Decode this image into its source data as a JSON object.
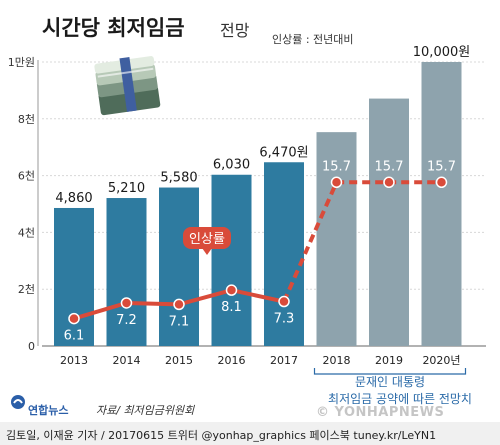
{
  "header": {
    "title_main": "시간당 최저임금",
    "title_sub": "전망",
    "rate_note": "인상률 : 전년대비"
  },
  "chart_data": {
    "type": "bar",
    "categories": [
      "2013",
      "2014",
      "2015",
      "2016",
      "2017",
      "2018",
      "2019",
      "2020년"
    ],
    "values": [
      4860,
      5210,
      5580,
      6030,
      6470,
      7530,
      8712,
      10000
    ],
    "value_labels": [
      "4,860",
      "5,210",
      "5,580",
      "6,030",
      "6,470원",
      "",
      "",
      "10,000원"
    ],
    "projected_from_index": 5,
    "ylim": [
      0,
      10000
    ],
    "yticks": [
      0,
      2000,
      4000,
      6000,
      8000,
      10000
    ],
    "ytick_labels": [
      "0",
      "2천",
      "4천",
      "6천",
      "8천",
      "1만원"
    ],
    "rate_series": {
      "values": [
        6.1,
        7.2,
        7.1,
        8.1,
        7.3,
        15.7,
        15.7,
        15.7
      ],
      "labels": [
        "6.1",
        "7.2",
        "7.1",
        "8.1",
        "7.3",
        "15.7",
        "15.7",
        "15.7"
      ],
      "projected_from_index": 5
    },
    "annotations": {
      "rate_badge": "인상률",
      "projection_bracket_line1": "문재인 대통령",
      "projection_bracket_line2": "최저임금 공약에 따른 전망치"
    },
    "colors": {
      "actual_bar": "#2e7ba0",
      "projected_bar": "#8ea3ad",
      "rate_line": "#d94b3a",
      "badge": "#d94b3a",
      "bracket": "#2a6aa8"
    }
  },
  "footer": {
    "logo": "연합뉴스",
    "source": "자료/ 최저임금위원회",
    "credit": "김토일, 이재윤 기자 / 20170615 트위터 @yonhap_graphics  페이스북 tuney.kr/LeYN1",
    "watermark": "© YONHAPNEWS"
  }
}
